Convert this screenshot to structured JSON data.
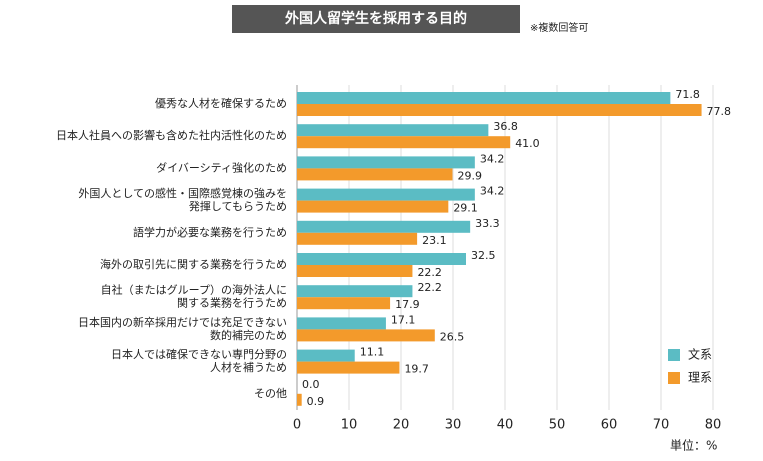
{
  "chart_data": {
    "type": "barh",
    "title": "外国人留学生を採用する目的",
    "subtitle": "※複数回答可",
    "unit_label": "単位：%",
    "categories": [
      [
        "優秀な人材を確保するため"
      ],
      [
        "日本人社員への影響も含めた社内活性化のため"
      ],
      [
        "ダイバーシティ強化のため"
      ],
      [
        "外国人としての感性・国際感覚棟の強みを",
        "発揮してもらうため"
      ],
      [
        "語学力が必要な業務を行うため"
      ],
      [
        "海外の取引先に関する業務を行うため"
      ],
      [
        "自社（またはグループ）の海外法人に",
        "関する業務を行うため"
      ],
      [
        "日本国内の新卒採用だけでは充足できない",
        "数的補完のため"
      ],
      [
        "日本人では確保できない専門分野の",
        "人材を補うため"
      ],
      [
        "その他"
      ]
    ],
    "series": [
      {
        "name": "文系",
        "color": "#5bbcc4",
        "values": [
          71.8,
          36.8,
          34.2,
          34.2,
          33.3,
          32.5,
          22.2,
          17.1,
          11.1,
          0
        ],
        "value_labels": [
          "71.8",
          "36.8",
          "34.2",
          "34.2",
          "33.3",
          "32.5",
          "22.2",
          "17.1",
          "11.1",
          "0.0"
        ]
      },
      {
        "name": "理系",
        "color": "#f39a2b",
        "values": [
          77.8,
          41,
          29.9,
          29.1,
          23.1,
          22.2,
          17.9,
          26.5,
          19.7,
          0.9
        ],
        "value_labels": [
          "77.8",
          "41.0",
          "29.9",
          "29.1",
          "23.1",
          "22.2",
          "17.9",
          "26.5",
          "19.7",
          "0.9"
        ]
      }
    ],
    "xlim": [
      0,
      80
    ],
    "xticks": [
      0,
      10,
      20,
      30,
      40,
      50,
      60,
      70,
      80
    ],
    "grid": true,
    "legend": "lower right"
  }
}
